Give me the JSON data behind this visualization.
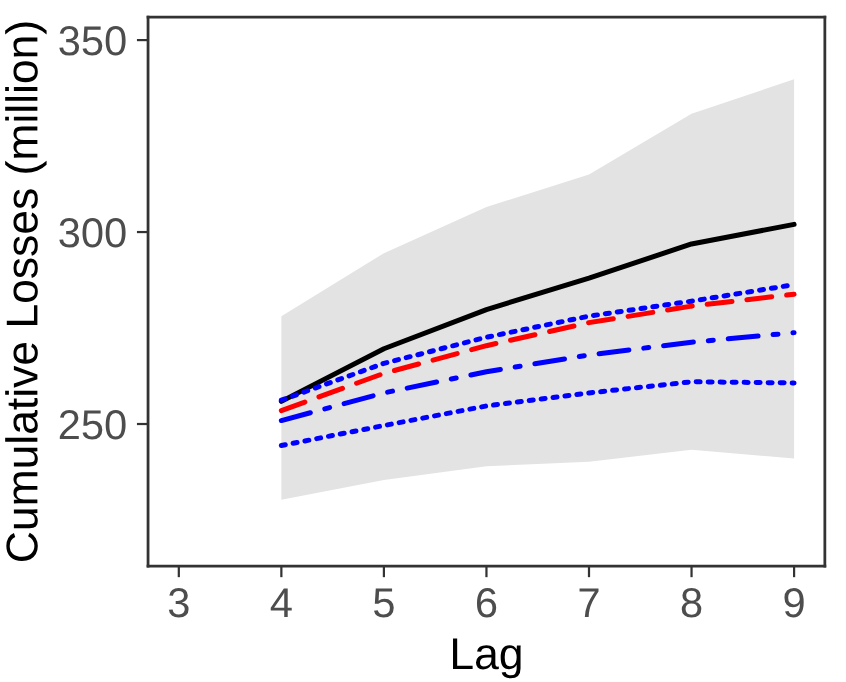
{
  "chart_data": {
    "type": "line",
    "xlabel": "Lag",
    "ylabel": "Cumulative Losses (million)",
    "x": [
      4,
      5,
      6,
      7,
      8,
      9
    ],
    "xlim": [
      2.7,
      9.3
    ],
    "xticks": [
      3,
      4,
      5,
      6,
      7,
      8,
      9
    ],
    "ylim": [
      213,
      356
    ],
    "yticks": [
      250,
      300,
      350
    ],
    "grid": false,
    "series": [
      {
        "color": "#000000",
        "line_style": "solid",
        "values": [
          255.9,
          269.6,
          279.8,
          288,
          296.9,
          302
        ],
        "lower": [
          230.3,
          235.4,
          239,
          240.2,
          243.3,
          241
        ],
        "upper": [
          278.1,
          294.5,
          306.5,
          315,
          330.8,
          339.8
        ]
      },
      {
        "color": "#ff0000",
        "line_style": "dashed",
        "values": [
          253.5,
          263.2,
          270.4,
          276.4,
          280.7,
          283.8
        ]
      },
      {
        "color": "#0000ff",
        "line_style": "dotted",
        "values": [
          256.2,
          265.8,
          272.6,
          278.1,
          282,
          286.3
        ]
      },
      {
        "color": "#0000ff",
        "line_style": "dashdot",
        "values": [
          250.9,
          258.1,
          263.6,
          268,
          271.3,
          273.8
        ]
      },
      {
        "color": "#0000ff",
        "line_style": "dotted",
        "values": [
          244.4,
          249.6,
          254.7,
          258.1,
          261,
          260.7
        ]
      }
    ]
  }
}
